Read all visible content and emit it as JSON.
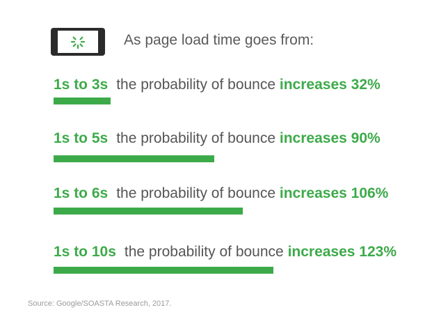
{
  "header": {
    "text": "As page load time goes from:",
    "icon": "loading-phone-icon"
  },
  "colors": {
    "accent": "#3daa4a",
    "text": "#555555",
    "source": "#9a9a9a"
  },
  "chart_data": {
    "type": "bar",
    "categories": [
      "1s to 3s",
      "1s to 5s",
      "1s to 6s",
      "1s to 10s"
    ],
    "values": [
      32,
      90,
      106,
      123
    ],
    "row_text": "the probability of bounce",
    "increase_labels": [
      "increases 32%",
      "increases 90%",
      "increases 106%",
      "increases 123%"
    ]
  },
  "footer": {
    "source": "Source: Google/SOASTA Research, 2017."
  }
}
